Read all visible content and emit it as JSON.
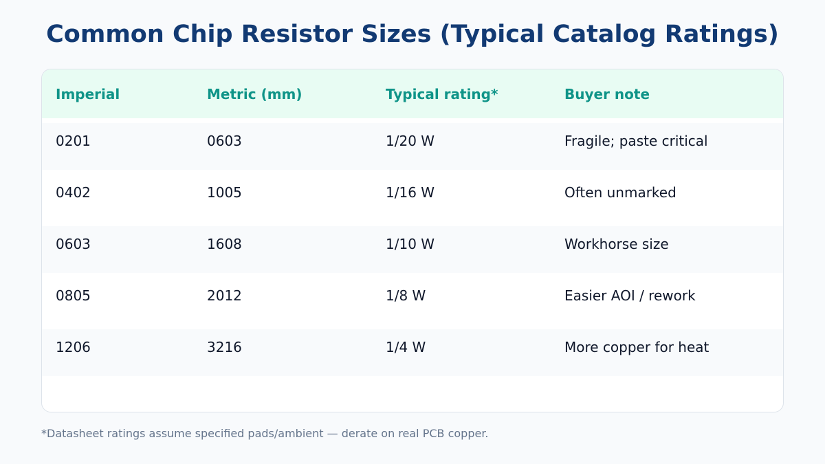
{
  "title": "Common Chip Resistor Sizes (Typical Catalog Ratings)",
  "table": {
    "headers": [
      "Imperial",
      "Metric (mm)",
      "Typical rating*",
      "Buyer note"
    ],
    "rows": [
      [
        "0201",
        "0603",
        "1/20 W",
        "Fragile; paste critical"
      ],
      [
        "0402",
        "1005",
        "1/16 W",
        "Often unmarked"
      ],
      [
        "0603",
        "1608",
        "1/10 W",
        "Workhorse size"
      ],
      [
        "0805",
        "2012",
        "1/8 W",
        "Easier AOI / rework"
      ],
      [
        "1206",
        "3216",
        "1/4 W",
        "More copper for heat"
      ]
    ]
  },
  "footnote": "*Datasheet ratings assume specified pads/ambient — derate on real PCB copper.",
  "colors": {
    "title": "#123a73",
    "header_bg": "#e8fcf3",
    "header_text": "#0f9488",
    "row_shade": "#f8fafc",
    "body_text": "#0f172a",
    "footnote_text": "#64748b"
  }
}
